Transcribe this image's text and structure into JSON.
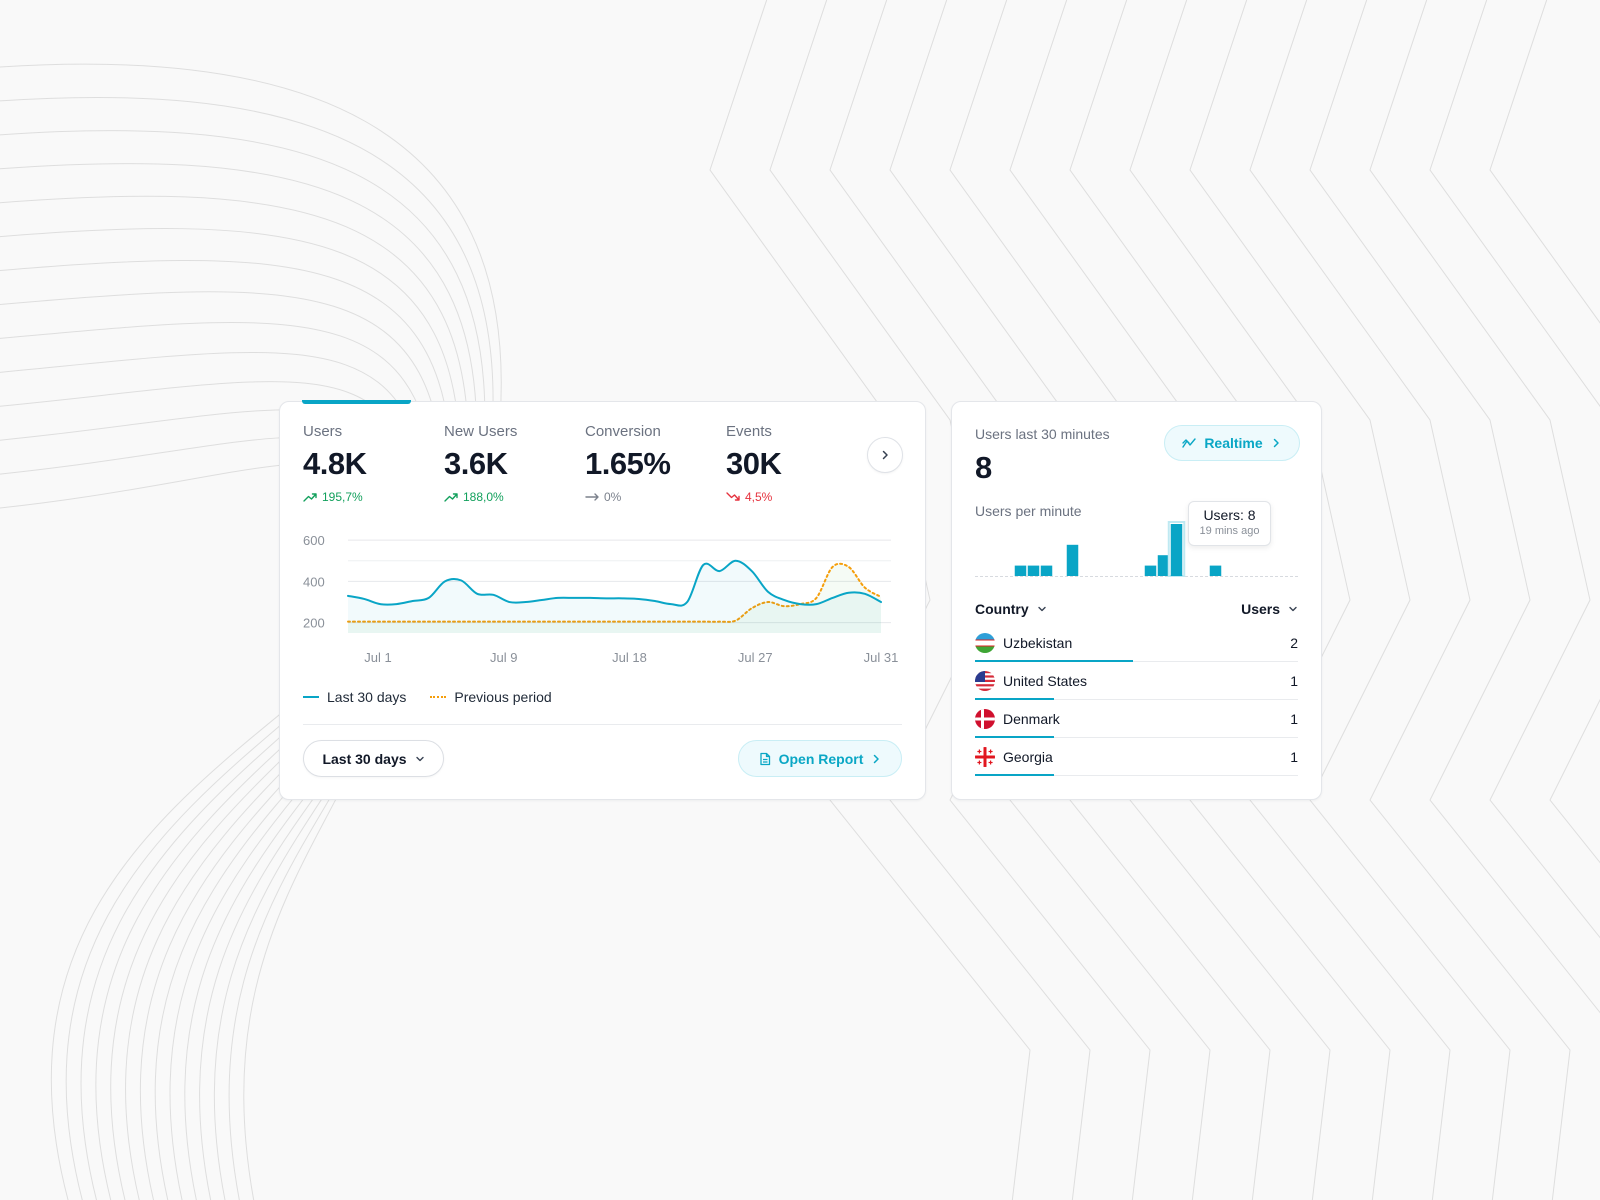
{
  "metrics": [
    {
      "label": "Users",
      "value": "4.8K",
      "change": "195,7%",
      "trend": "up"
    },
    {
      "label": "New Users",
      "value": "3.6K",
      "change": "188,0%",
      "trend": "up"
    },
    {
      "label": "Conversion",
      "value": "1.65%",
      "change": "0%",
      "trend": "flat"
    },
    {
      "label": "Events",
      "value": "30K",
      "change": "4,5%",
      "trend": "down"
    }
  ],
  "legend": {
    "current": "Last 30 days",
    "previous": "Previous period"
  },
  "controls": {
    "range_label": "Last 30 days",
    "open_report_label": "Open Report"
  },
  "colors": {
    "primary": "#09a5c6",
    "previous": "#f59e0b",
    "up": "#12a05c",
    "down": "#e5323e"
  },
  "chart_data": {
    "type": "line",
    "x_ticks": [
      "Jul 1",
      "Jul 9",
      "Jul 18",
      "Jul 27",
      "Jul 31"
    ],
    "y_ticks": [
      200,
      400,
      600
    ],
    "ylim": [
      150,
      620
    ],
    "series": [
      {
        "name": "Last 30 days",
        "values": [
          330,
          315,
          290,
          290,
          305,
          320,
          400,
          405,
          340,
          335,
          300,
          300,
          310,
          320,
          320,
          320,
          318,
          318,
          315,
          305,
          290,
          300,
          480,
          450,
          500,
          450,
          350,
          310,
          290,
          290,
          320,
          345,
          340,
          300
        ]
      },
      {
        "name": "Previous period",
        "values": [
          205,
          205,
          205,
          205,
          205,
          205,
          205,
          205,
          205,
          205,
          205,
          205,
          205,
          205,
          205,
          205,
          205,
          205,
          205,
          205,
          205,
          205,
          205,
          205,
          210,
          270,
          300,
          280,
          290,
          320,
          470,
          470,
          370,
          325
        ]
      }
    ]
  },
  "realtime": {
    "label": "Users last 30 minutes",
    "value": "8",
    "button_label": "Realtime",
    "per_minute_label": "Users per minute",
    "tooltip_main": "Users: 8",
    "tooltip_sub": "19 mins ago",
    "bars": [
      0,
      0,
      0,
      1,
      1,
      1,
      0,
      3,
      0,
      0,
      0,
      0,
      0,
      1,
      2,
      5,
      0,
      0,
      1,
      0,
      0,
      0,
      0,
      0,
      0
    ],
    "bars_max": 5,
    "highlight_index": 15
  },
  "table": {
    "col_country": "Country",
    "col_users": "Users",
    "rows": [
      {
        "country": "Uzbekistan",
        "users": "2",
        "flag": "uz-flag-icon",
        "share": 1.0
      },
      {
        "country": "United States",
        "users": "1",
        "flag": "us-flag-icon",
        "share": 0.5
      },
      {
        "country": "Denmark",
        "users": "1",
        "flag": "dk-flag-icon",
        "share": 0.5
      },
      {
        "country": "Georgia",
        "users": "1",
        "flag": "ge-flag-icon",
        "share": 0.5
      }
    ]
  }
}
